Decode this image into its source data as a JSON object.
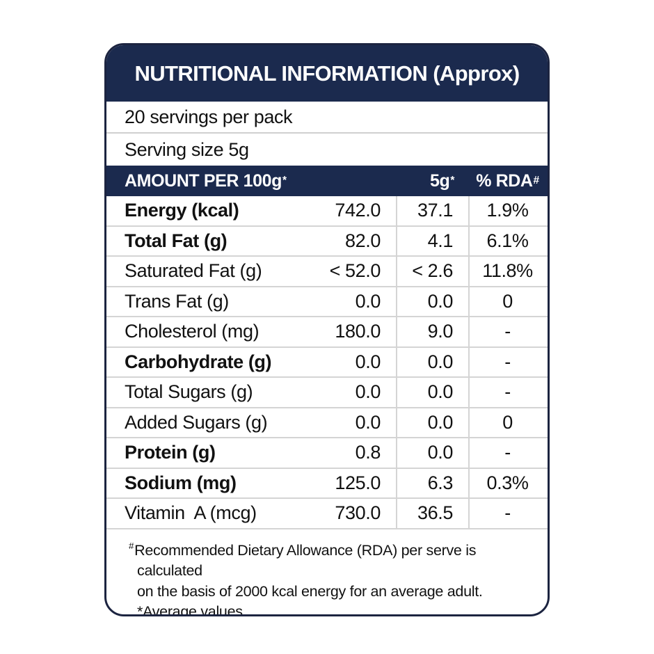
{
  "title": "NUTRITIONAL INFORMATION (Approx)",
  "servings": {
    "per_pack": "20 servings per pack",
    "serving_size": "Serving size 5g"
  },
  "columns": {
    "amount": {
      "label": "AMOUNT PER 100g",
      "sup": "*"
    },
    "per_5g": {
      "label": "5g",
      "sup": "*"
    },
    "rda": {
      "label": "% RDA",
      "sup": "#"
    }
  },
  "table": {
    "rows": [
      {
        "label": "Energy (kcal)",
        "per_100g": "742.0",
        "per_5g": "37.1",
        "rda": "1.9%"
      },
      {
        "label": "Total Fat (g)",
        "per_100g": "82.0",
        "per_5g": "4.1",
        "rda": "6.1%"
      },
      {
        "label": "Saturated Fat (g)",
        "per_100g": "< 52.0",
        "per_5g": "< 2.6",
        "rda": "11.8%"
      },
      {
        "label": "Trans Fat (g)",
        "per_100g": "0.0",
        "per_5g": "0.0",
        "rda": "0"
      },
      {
        "label": "Cholesterol (mg)",
        "per_100g": "180.0",
        "per_5g": "9.0",
        "rda": "-"
      },
      {
        "label": "Carbohydrate (g)",
        "per_100g": "0.0",
        "per_5g": "0.0",
        "rda": "-"
      },
      {
        "label": "Total Sugars (g)",
        "per_100g": "0.0",
        "per_5g": "0.0",
        "rda": "-"
      },
      {
        "label": "Added Sugars (g)",
        "per_100g": "0.0",
        "per_5g": "0.0",
        "rda": "0"
      },
      {
        "label": "Protein (g)",
        "per_100g": "0.8",
        "per_5g": "0.0",
        "rda": "-"
      },
      {
        "label": "Sodium (mg)",
        "per_100g": "125.0",
        "per_5g": "6.3",
        "rda": "0.3%"
      },
      {
        "label": "Vitamin  A (mcg)",
        "per_100g": "730.0",
        "per_5g": "36.5",
        "rda": "-"
      }
    ]
  },
  "footnote": {
    "marker": "#",
    "line1": "Recommended Dietary Allowance (RDA) per serve is calculated",
    "line2": "on the basis of 2000 kcal energy for an average adult.",
    "line3": "*Average values"
  },
  "colors": {
    "navy": "#1b2a4e",
    "border": "#1c2440",
    "divider": "#d4d4d4",
    "text": "#111111",
    "background": "#ffffff"
  }
}
